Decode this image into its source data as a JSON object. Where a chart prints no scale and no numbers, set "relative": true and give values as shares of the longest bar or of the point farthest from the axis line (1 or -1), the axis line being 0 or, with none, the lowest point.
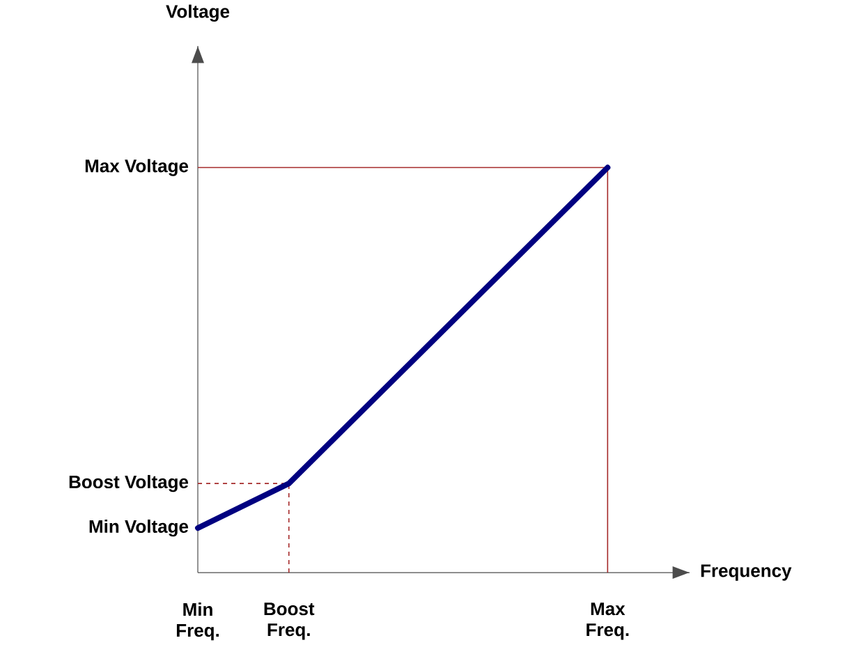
{
  "chart_data": {
    "type": "line",
    "relative": true,
    "xlabel": "Frequency",
    "categories": [
      "Min Freq.",
      null,
      "Boost Freq.",
      null,
      null,
      null,
      null,
      null,
      null,
      "Max Freq."
    ],
    "values": [
      0.11,
      null,
      0.22,
      null,
      null,
      null,
      null,
      null,
      null,
      1
    ],
    "color": "#000080",
    "marker": "none",
    "line_style": "solid",
    "annotations": [
      "Voltage",
      {
        "text": "Min Voltage",
        "x": "Min Freq.",
        "y": 0.11
      }
    ],
    "ref_lines": [
      {
        "axis": "y",
        "value": 1,
        "label": "Max Voltage",
        "color": "#a52a2a",
        "line_style": "solid"
      },
      {
        "axis": "x",
        "value": "Max Freq.",
        "color": "#a52a2a",
        "line_style": "solid"
      },
      {
        "axis": "y",
        "value": 0.22,
        "label": "Boost Voltage",
        "color": "#a52a2a",
        "line_style": "dashed"
      },
      {
        "axis": "x",
        "value": "Boost Freq.",
        "color": "#a52a2a",
        "line_style": "dashed"
      }
    ]
  }
}
